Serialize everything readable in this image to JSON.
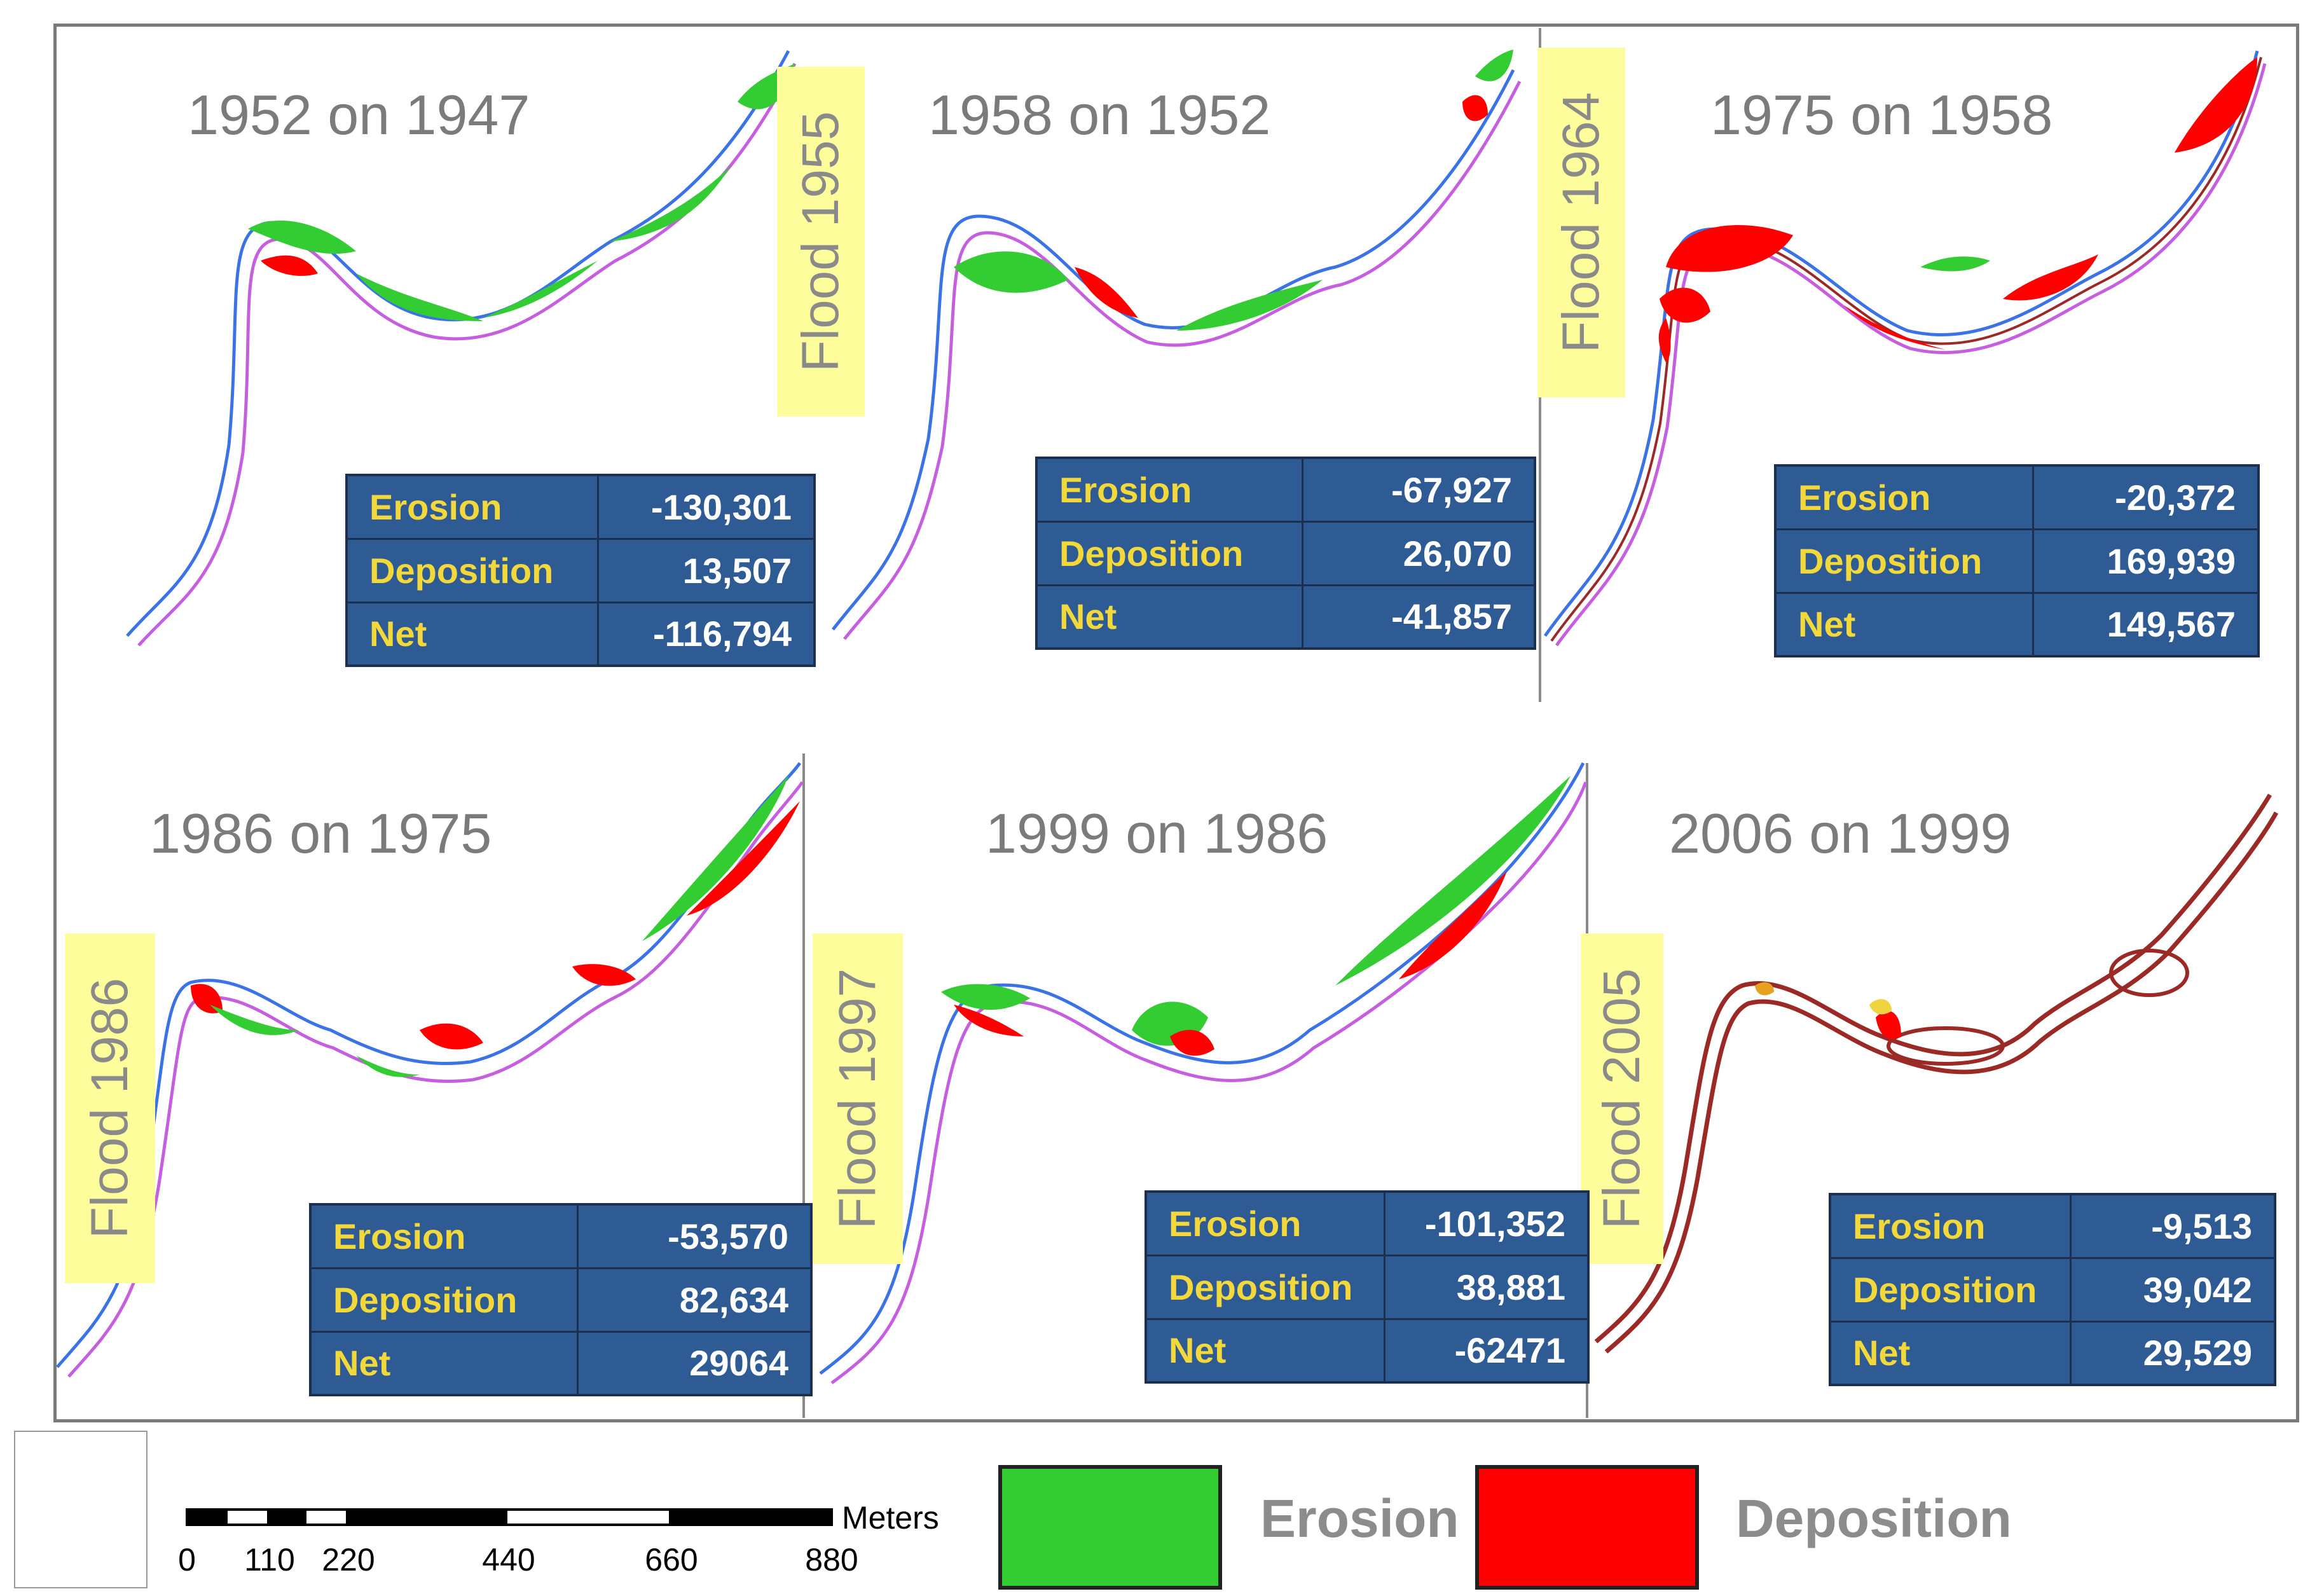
{
  "colors": {
    "erosion": "#33cc33",
    "deposition": "#ff0000",
    "channel_blue": "#3b73e6",
    "channel_violet": "#c55fe0",
    "channel_brown": "#9b2a26",
    "flood_label_bg": "#fdfd9c",
    "table_bg": "#2f5b94"
  },
  "panels": [
    {
      "title": "1952 on 1947",
      "stats": [
        {
          "label": "Erosion",
          "value": "-130,301"
        },
        {
          "label": "Deposition",
          "value": "13,507"
        },
        {
          "label": "Net",
          "value": "-116,794"
        }
      ]
    },
    {
      "title": "1958 on 1952",
      "stats": [
        {
          "label": "Erosion",
          "value": "-67,927"
        },
        {
          "label": "Deposition",
          "value": "26,070"
        },
        {
          "label": "Net",
          "value": "-41,857"
        }
      ]
    },
    {
      "title": "1975 on 1958",
      "stats": [
        {
          "label": "Erosion",
          "value": "-20,372"
        },
        {
          "label": "Deposition",
          "value": "169,939"
        },
        {
          "label": "Net",
          "value": "149,567"
        }
      ]
    },
    {
      "title": "1986 on 1975",
      "stats": [
        {
          "label": "Erosion",
          "value": "-53,570"
        },
        {
          "label": "Deposition",
          "value": "82,634"
        },
        {
          "label": "Net",
          "value": "29064"
        }
      ]
    },
    {
      "title": "1999 on 1986",
      "stats": [
        {
          "label": "Erosion",
          "value": "-101,352"
        },
        {
          "label": "Deposition",
          "value": "38,881"
        },
        {
          "label": "Net",
          "value": "-62471"
        }
      ]
    },
    {
      "title": "2006 on 1999",
      "stats": [
        {
          "label": "Erosion",
          "value": "-9,513"
        },
        {
          "label": "Deposition",
          "value": "39,042"
        },
        {
          "label": "Net",
          "value": "29,529"
        }
      ]
    }
  ],
  "floods": [
    "Flood 1955",
    "Flood 1964",
    "Flood 1986",
    "Flood 1997",
    "Flood 2005"
  ],
  "scale_bar": {
    "unit": "Meters",
    "ticks": [
      "0",
      "110",
      "220",
      "440",
      "660",
      "880"
    ]
  },
  "legend": {
    "erosion_label": "Erosion",
    "deposition_label": "Deposition"
  }
}
